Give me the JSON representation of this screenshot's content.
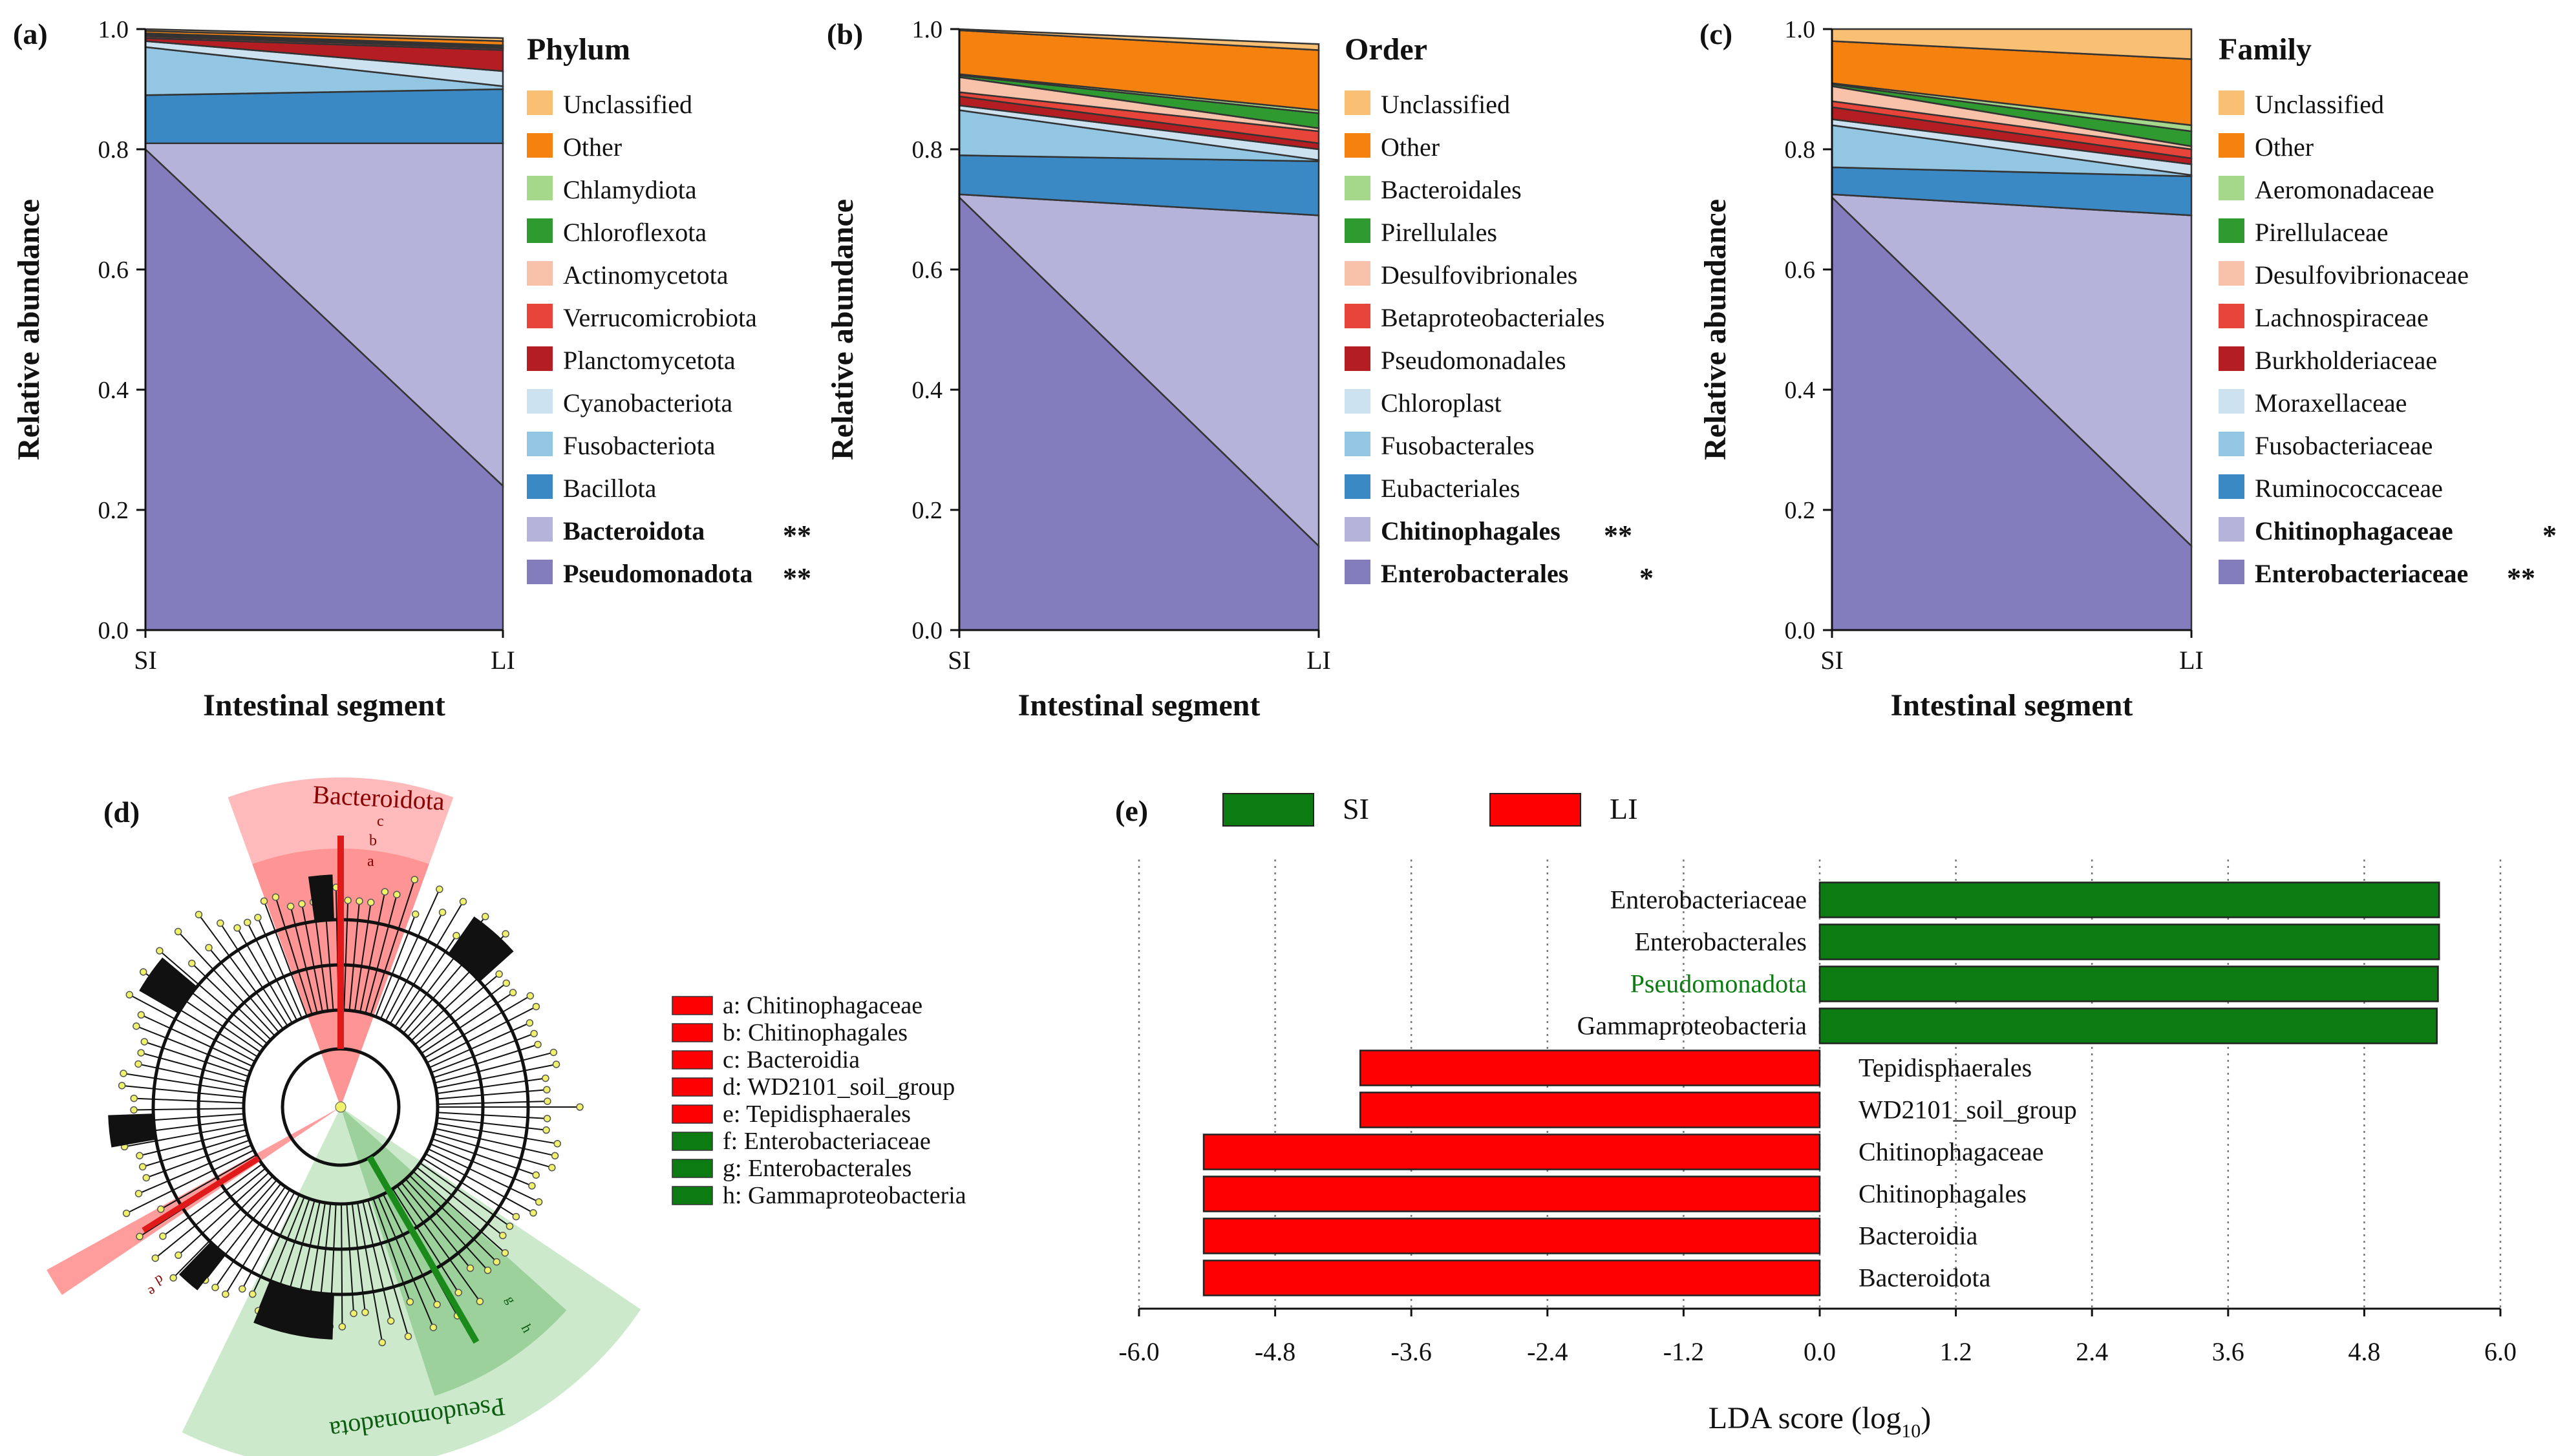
{
  "figure": {
    "panels": [
      {
        "id": "a",
        "label": "(a)"
      },
      {
        "id": "b",
        "label": "(b)"
      },
      {
        "id": "c",
        "label": "(c)"
      },
      {
        "id": "d",
        "label": "(d)"
      },
      {
        "id": "e",
        "label": "(e)"
      }
    ]
  },
  "colors": {
    "unclassified": "#f9bf73",
    "other": "#f5820e",
    "c3": "#a6d88c",
    "c4": "#2e9a30",
    "c5": "#f8c2aa",
    "c6": "#e8453a",
    "c7": "#b41d22",
    "c8": "#cde2f1",
    "c9": "#93c6e2",
    "c10": "#3b89c4",
    "c11": "#b5b3da",
    "c12": "#837dbd",
    "si_green": "#0c7c12",
    "li_red": "#ff0000"
  },
  "chart_data": [
    {
      "type": "area",
      "panel": "a",
      "legend_title": "Phylum",
      "x": [
        "SI",
        "LI"
      ],
      "xlabel": "Intestinal segment",
      "ylabel": "Relative abundance",
      "ylim": [
        0,
        1.0
      ],
      "yticks": [
        "0.0",
        "0.2",
        "0.4",
        "0.6",
        "0.8",
        "1.0"
      ],
      "series": [
        {
          "name": "Pseudomonadota",
          "values": [
            0.8,
            0.24
          ],
          "sig": "**",
          "bold": true,
          "color": "#837dbd"
        },
        {
          "name": "Bacteroidota",
          "values": [
            0.01,
            0.57
          ],
          "sig": "**",
          "bold": true,
          "color": "#b5b3da"
        },
        {
          "name": "Bacillota",
          "values": [
            0.08,
            0.09
          ],
          "sig": "",
          "bold": false,
          "color": "#3b89c4"
        },
        {
          "name": "Fusobacteriota",
          "values": [
            0.08,
            0.005
          ],
          "sig": "",
          "bold": false,
          "color": "#93c6e2"
        },
        {
          "name": "Cyanobacteriota",
          "values": [
            0.01,
            0.025
          ],
          "sig": "",
          "bold": false,
          "color": "#cde2f1"
        },
        {
          "name": "Planctomycetota",
          "values": [
            0.005,
            0.035
          ],
          "sig": "",
          "bold": false,
          "color": "#b41d22"
        },
        {
          "name": "Verrucomicrobiota",
          "values": [
            0.003,
            0.003
          ],
          "sig": "",
          "bold": false,
          "color": "#e8453a"
        },
        {
          "name": "Actinomycetota",
          "values": [
            0.002,
            0.002
          ],
          "sig": "",
          "bold": false,
          "color": "#f8c2aa"
        },
        {
          "name": "Chloroflexota",
          "values": [
            0.002,
            0.002
          ],
          "sig": "",
          "bold": false,
          "color": "#2e9a30"
        },
        {
          "name": "Chlamydiota",
          "values": [
            0.001,
            0.001
          ],
          "sig": "",
          "bold": false,
          "color": "#a6d88c"
        },
        {
          "name": "Other",
          "values": [
            0.004,
            0.007
          ],
          "sig": "",
          "bold": false,
          "color": "#f5820e"
        },
        {
          "name": "Unclassified",
          "values": [
            0.005,
            0.005
          ],
          "sig": "",
          "bold": false,
          "color": "#f9bf73"
        }
      ]
    },
    {
      "type": "area",
      "panel": "b",
      "legend_title": "Order",
      "x": [
        "SI",
        "LI"
      ],
      "xlabel": "Intestinal segment",
      "ylabel": "Relative abundance",
      "ylim": [
        0,
        1.0
      ],
      "yticks": [
        "0.0",
        "0.2",
        "0.4",
        "0.6",
        "0.8",
        "1.0"
      ],
      "series": [
        {
          "name": "Enterobacterales",
          "values": [
            0.72,
            0.14
          ],
          "sig": "*",
          "bold": true,
          "color": "#837dbd"
        },
        {
          "name": "Chitinophagales",
          "values": [
            0.005,
            0.55
          ],
          "sig": "**",
          "bold": true,
          "color": "#b5b3da"
        },
        {
          "name": "Eubacteriales",
          "values": [
            0.065,
            0.09
          ],
          "sig": "",
          "bold": false,
          "color": "#3b89c4"
        },
        {
          "name": "Fusobacterales",
          "values": [
            0.075,
            0.002
          ],
          "sig": "",
          "bold": false,
          "color": "#93c6e2"
        },
        {
          "name": "Chloroplast",
          "values": [
            0.008,
            0.018
          ],
          "sig": "",
          "bold": false,
          "color": "#cde2f1"
        },
        {
          "name": "Pseudomonadales",
          "values": [
            0.015,
            0.01
          ],
          "sig": "",
          "bold": false,
          "color": "#b41d22"
        },
        {
          "name": "Betaproteobacteriales",
          "values": [
            0.007,
            0.02
          ],
          "sig": "",
          "bold": false,
          "color": "#e8453a"
        },
        {
          "name": "Desulfovibrionales",
          "values": [
            0.025,
            0.005
          ],
          "sig": "",
          "bold": false,
          "color": "#f8c2aa"
        },
        {
          "name": "Pirellulales",
          "values": [
            0.003,
            0.025
          ],
          "sig": "",
          "bold": false,
          "color": "#2e9a30"
        },
        {
          "name": "Bacteroidales",
          "values": [
            0.002,
            0.005
          ],
          "sig": "",
          "bold": false,
          "color": "#a6d88c"
        },
        {
          "name": "Other",
          "values": [
            0.073,
            0.1
          ],
          "sig": "",
          "bold": false,
          "color": "#f5820e"
        },
        {
          "name": "Unclassified",
          "values": [
            0.002,
            0.01
          ],
          "sig": "",
          "bold": false,
          "color": "#f9bf73"
        }
      ]
    },
    {
      "type": "area",
      "panel": "c",
      "legend_title": "Family",
      "x": [
        "SI",
        "LI"
      ],
      "xlabel": "Intestinal segment",
      "ylabel": "Relative abundance",
      "ylim": [
        0,
        1.0
      ],
      "yticks": [
        "0.0",
        "0.2",
        "0.4",
        "0.6",
        "0.8",
        "1.0"
      ],
      "series": [
        {
          "name": "Enterobacteriaceae",
          "values": [
            0.72,
            0.14
          ],
          "sig": "**",
          "bold": true,
          "color": "#837dbd"
        },
        {
          "name": "Chitinophagaceae",
          "values": [
            0.005,
            0.55
          ],
          "sig": "*",
          "bold": true,
          "color": "#b5b3da"
        },
        {
          "name": "Ruminococcaceae",
          "values": [
            0.045,
            0.065
          ],
          "sig": "",
          "bold": false,
          "color": "#3b89c4"
        },
        {
          "name": "Fusobacteriaceae",
          "values": [
            0.07,
            0.002
          ],
          "sig": "",
          "bold": false,
          "color": "#93c6e2"
        },
        {
          "name": "Moraxellaceae",
          "values": [
            0.01,
            0.018
          ],
          "sig": "",
          "bold": false,
          "color": "#cde2f1"
        },
        {
          "name": "Burkholderiaceae",
          "values": [
            0.02,
            0.01
          ],
          "sig": "",
          "bold": false,
          "color": "#b41d22"
        },
        {
          "name": "Lachnospiraceae",
          "values": [
            0.01,
            0.015
          ],
          "sig": "",
          "bold": false,
          "color": "#e8453a"
        },
        {
          "name": "Desulfovibrionaceae",
          "values": [
            0.025,
            0.005
          ],
          "sig": "",
          "bold": false,
          "color": "#f8c2aa"
        },
        {
          "name": "Pirellulaceae",
          "values": [
            0.003,
            0.025
          ],
          "sig": "",
          "bold": false,
          "color": "#2e9a30"
        },
        {
          "name": "Aeromonadaceae",
          "values": [
            0.002,
            0.01
          ],
          "sig": "",
          "bold": false,
          "color": "#a6d88c"
        },
        {
          "name": "Other",
          "values": [
            0.07,
            0.11
          ],
          "sig": "",
          "bold": false,
          "color": "#f5820e"
        },
        {
          "name": "Unclassified",
          "values": [
            0.02,
            0.05
          ],
          "sig": "",
          "bold": false,
          "color": "#f9bf73"
        }
      ]
    },
    {
      "type": "cladogram",
      "panel": "d",
      "clade_labels": [
        "Bacteroidota",
        "Pseudomonadota"
      ],
      "highlighted": [
        {
          "letter": "a",
          "name": "Chitinophagaceae",
          "group": "LI"
        },
        {
          "letter": "b",
          "name": "Chitinophagales",
          "group": "LI"
        },
        {
          "letter": "c",
          "name": "Bacteroidia",
          "group": "LI"
        },
        {
          "letter": "d",
          "name": "WD2101_soil_group",
          "group": "LI"
        },
        {
          "letter": "e",
          "name": "Tepidisphaerales",
          "group": "LI"
        },
        {
          "letter": "f",
          "name": "Enterobacteriaceae",
          "group": "SI"
        },
        {
          "letter": "g",
          "name": "Enterobacterales",
          "group": "SI"
        },
        {
          "letter": "h",
          "name": "Gammaproteobacteria",
          "group": "SI"
        }
      ]
    },
    {
      "type": "bar",
      "orientation": "horizontal",
      "panel": "e",
      "xlabel": "LDA score (log",
      "xlabel_sub": "10",
      "xlabel_end": ")",
      "xlim": [
        -6.0,
        6.0
      ],
      "xticks": [
        -6.0,
        -4.8,
        -3.6,
        -2.4,
        -1.2,
        0.0,
        1.2,
        2.4,
        3.6,
        4.8,
        6.0
      ],
      "xtick_labels": [
        "-6.0",
        "-4.8",
        "-3.6",
        "-2.4",
        "-1.2",
        "0.0",
        "1.2",
        "2.4",
        "3.6",
        "4.8",
        "6.0"
      ],
      "legend": [
        {
          "name": "SI",
          "color": "#0c7c12"
        },
        {
          "name": "LI",
          "color": "#ff0000"
        }
      ],
      "categories": [
        "Enterobacteriaceae",
        "Enterobacterales",
        "Pseudomonadota",
        "Gammaproteobacteria",
        "Tepidisphaerales",
        "WD2101_soil_group",
        "Chitinophagaceae",
        "Chitinophagales",
        "Bacteroidia",
        "Bacteroidota"
      ],
      "values": [
        5.46,
        5.46,
        5.45,
        5.44,
        -4.05,
        -4.05,
        -5.43,
        -5.43,
        -5.43,
        -5.43
      ],
      "groups": [
        "SI",
        "SI",
        "SI",
        "SI",
        "LI",
        "LI",
        "LI",
        "LI",
        "LI",
        "LI"
      ],
      "label_colors": [
        "#111111",
        "#111111",
        "#0c7c12",
        "#111111",
        "#111111",
        "#111111",
        "#111111",
        "#111111",
        "#111111",
        "#111111"
      ]
    }
  ]
}
